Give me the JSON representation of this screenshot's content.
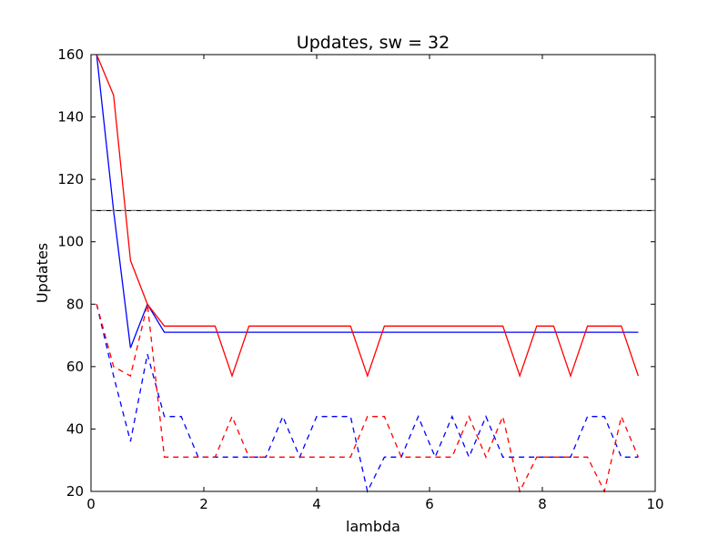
{
  "chart_data": {
    "type": "line",
    "title": "Updates, sw = 32",
    "xlabel": "lambda",
    "ylabel": "Updates",
    "xlim": [
      0,
      10
    ],
    "ylim": [
      20,
      160
    ],
    "xticks": [
      0,
      2,
      4,
      6,
      8,
      10
    ],
    "yticks": [
      20,
      40,
      60,
      80,
      100,
      120,
      140,
      160
    ],
    "grid": false,
    "x": [
      0.1,
      0.4,
      0.7,
      1.0,
      1.3,
      1.6,
      1.9,
      2.2,
      2.5,
      2.8,
      3.1,
      3.4,
      3.7,
      4.0,
      4.3,
      4.6,
      4.9,
      5.2,
      5.5,
      5.8,
      6.1,
      6.4,
      6.7,
      7.0,
      7.3,
      7.6,
      7.9,
      8.2,
      8.5,
      8.8,
      9.1,
      9.4,
      9.7
    ],
    "series": [
      {
        "color": "#0000ff",
        "dash": false,
        "values": [
          160,
          110,
          66,
          80,
          71,
          71,
          71,
          71,
          71,
          71,
          71,
          71,
          71,
          71,
          71,
          71,
          71,
          71,
          71,
          71,
          71,
          71,
          71,
          71,
          71,
          71,
          71,
          71,
          71,
          71,
          71,
          71,
          71
        ]
      },
      {
        "color": "#ff0000",
        "dash": false,
        "values": [
          160,
          147,
          94,
          80,
          73,
          73,
          73,
          73,
          57,
          73,
          73,
          73,
          73,
          73,
          73,
          73,
          57,
          73,
          73,
          73,
          73,
          73,
          73,
          73,
          73,
          57,
          73,
          73,
          57,
          73,
          73,
          73,
          57
        ]
      },
      {
        "color": "#0000ff",
        "dash": true,
        "values": [
          80,
          57,
          36,
          64,
          44,
          44,
          31,
          31,
          31,
          31,
          31,
          44,
          31,
          44,
          44,
          44,
          20,
          31,
          31,
          44,
          31,
          44,
          31,
          44,
          31,
          31,
          31,
          31,
          31,
          44,
          44,
          31,
          31
        ]
      },
      {
        "color": "#ff0000",
        "dash": true,
        "values": [
          80,
          60,
          57,
          80,
          31,
          31,
          31,
          31,
          44,
          31,
          31,
          31,
          31,
          31,
          31,
          31,
          44,
          44,
          31,
          31,
          31,
          31,
          44,
          31,
          44,
          20,
          31,
          31,
          31,
          31,
          20,
          44,
          31
        ]
      }
    ],
    "hlines": [
      {
        "y": 110,
        "color": "#000000",
        "dash": false
      },
      {
        "y": 110,
        "color": "#777777",
        "dash": true
      }
    ]
  }
}
